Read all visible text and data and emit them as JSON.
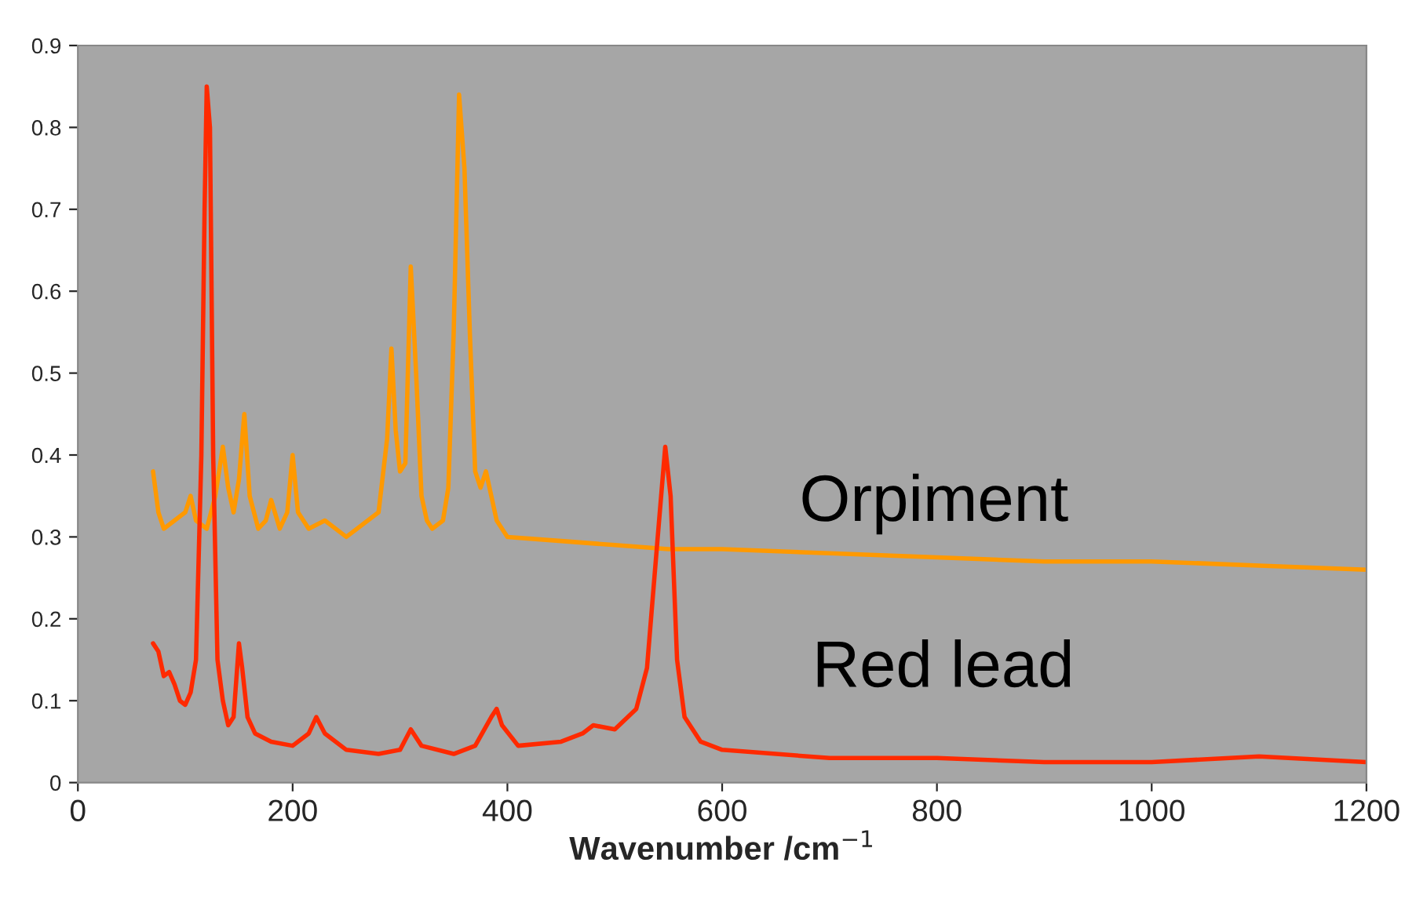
{
  "chart_data": {
    "type": "line",
    "xlabel": "Wavenumber /cm$^{−1}$",
    "xlim": [
      0,
      1200
    ],
    "xticks": [
      0,
      200,
      400,
      600,
      800,
      1000,
      1200
    ],
    "ylim": [
      0,
      0.9
    ],
    "yticks": [
      0,
      0.1,
      0.2,
      0.3,
      0.4,
      0.5,
      0.6,
      0.7,
      0.8,
      0.9
    ],
    "grid": false,
    "legend": false,
    "marker": "none",
    "line_style": "solid",
    "series": [
      {
        "name": "Orpiment",
        "color": "#ff9900",
        "x": [
          70,
          75,
          80,
          90,
          100,
          105,
          110,
          120,
          128,
          135,
          140,
          145,
          150,
          155,
          160,
          168,
          175,
          180,
          188,
          195,
          200,
          205,
          215,
          230,
          250,
          270,
          280,
          288,
          292,
          296,
          300,
          305,
          310,
          315,
          320,
          325,
          330,
          340,
          345,
          350,
          355,
          360,
          365,
          370,
          375,
          380,
          385,
          390,
          400,
          450,
          500,
          550,
          600,
          700,
          800,
          900,
          1000,
          1100,
          1200
        ],
        "values": [
          0.38,
          0.33,
          0.31,
          0.32,
          0.33,
          0.35,
          0.32,
          0.31,
          0.35,
          0.41,
          0.36,
          0.33,
          0.37,
          0.45,
          0.35,
          0.31,
          0.32,
          0.345,
          0.31,
          0.33,
          0.4,
          0.33,
          0.31,
          0.32,
          0.3,
          0.32,
          0.33,
          0.42,
          0.53,
          0.43,
          0.38,
          0.39,
          0.63,
          0.5,
          0.35,
          0.32,
          0.31,
          0.32,
          0.36,
          0.55,
          0.84,
          0.75,
          0.55,
          0.38,
          0.36,
          0.38,
          0.35,
          0.32,
          0.3,
          0.295,
          0.29,
          0.285,
          0.285,
          0.28,
          0.275,
          0.27,
          0.27,
          0.265,
          0.26
        ]
      },
      {
        "name": "Red lead",
        "color": "#ff2a00",
        "x": [
          70,
          75,
          80,
          85,
          90,
          95,
          100,
          105,
          110,
          115,
          118,
          120,
          123,
          126,
          130,
          135,
          140,
          145,
          150,
          153,
          158,
          165,
          180,
          200,
          215,
          222,
          230,
          250,
          280,
          300,
          310,
          320,
          350,
          370,
          385,
          390,
          395,
          410,
          450,
          470,
          480,
          500,
          520,
          530,
          540,
          547,
          552,
          558,
          565,
          580,
          600,
          700,
          800,
          900,
          1000,
          1100,
          1200
        ],
        "values": [
          0.17,
          0.16,
          0.13,
          0.135,
          0.12,
          0.1,
          0.095,
          0.11,
          0.15,
          0.4,
          0.7,
          0.85,
          0.8,
          0.4,
          0.15,
          0.1,
          0.07,
          0.08,
          0.17,
          0.14,
          0.08,
          0.06,
          0.05,
          0.045,
          0.06,
          0.08,
          0.06,
          0.04,
          0.035,
          0.04,
          0.065,
          0.045,
          0.035,
          0.045,
          0.08,
          0.09,
          0.07,
          0.045,
          0.05,
          0.06,
          0.07,
          0.065,
          0.09,
          0.14,
          0.3,
          0.41,
          0.35,
          0.15,
          0.08,
          0.05,
          0.04,
          0.03,
          0.03,
          0.025,
          0.025,
          0.032,
          0.025
        ]
      }
    ]
  }
}
